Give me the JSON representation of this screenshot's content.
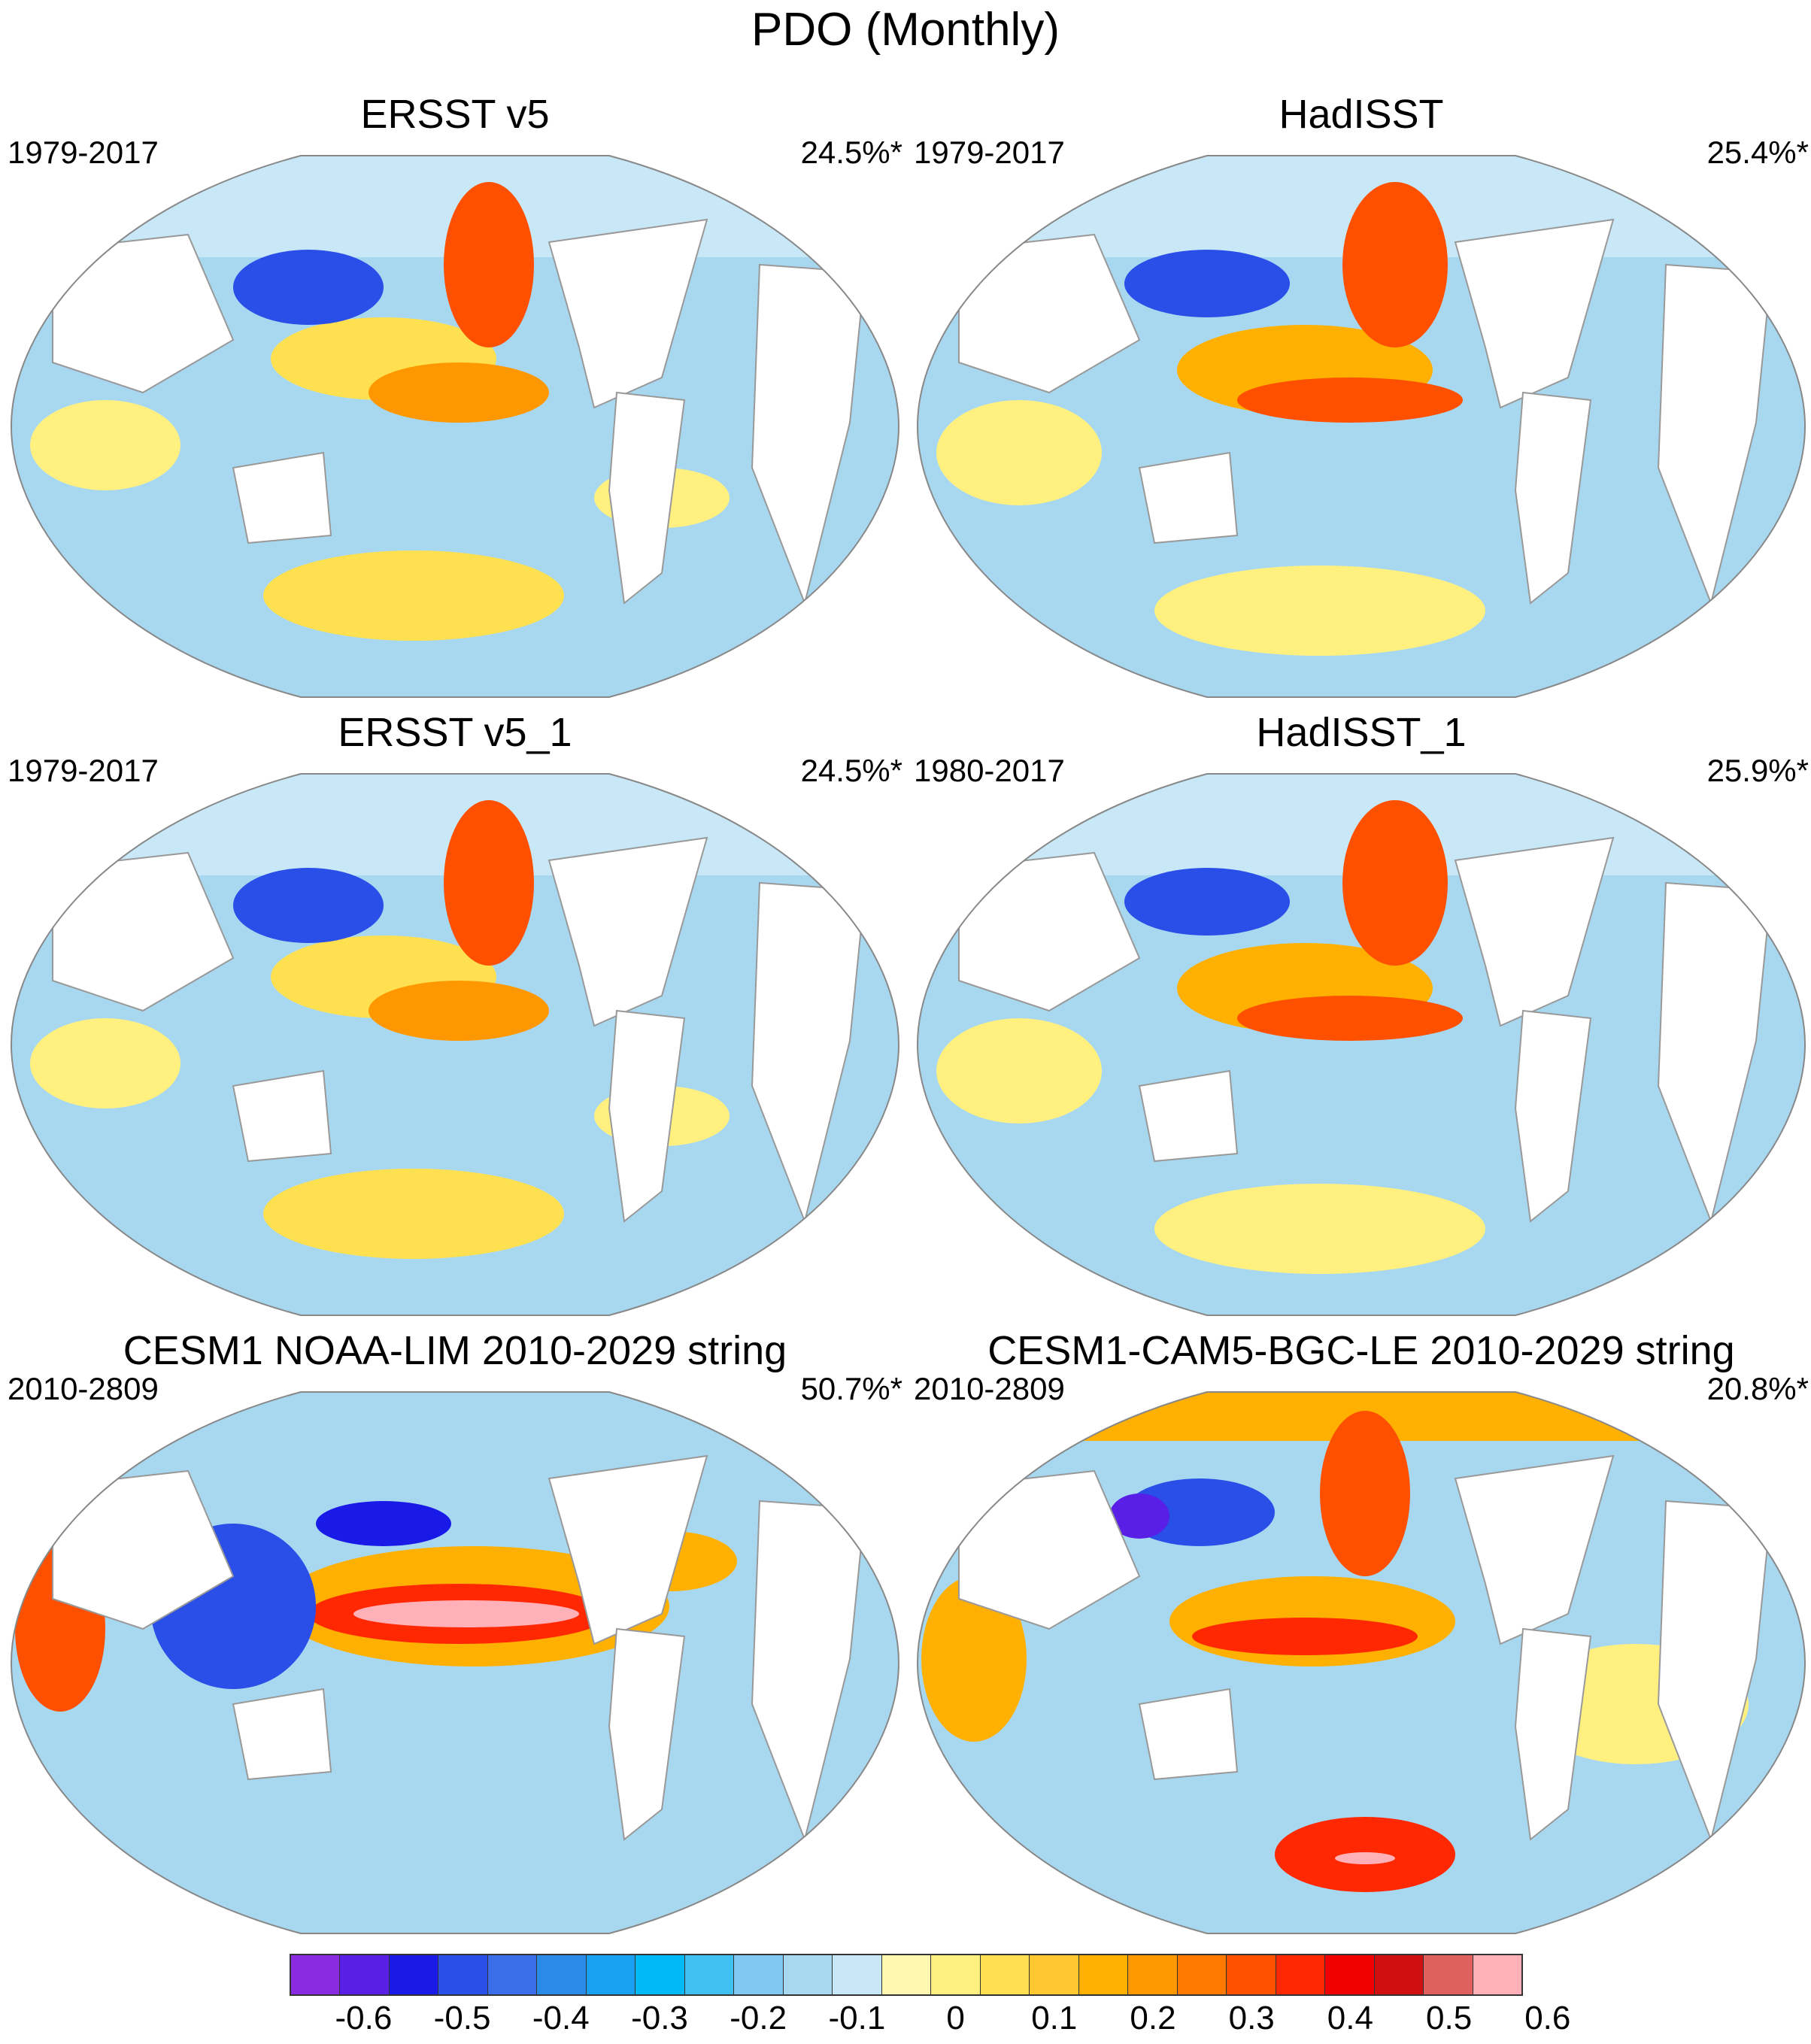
{
  "title": "PDO (Monthly)",
  "panels": [
    {
      "title": "ERSST v5",
      "period": "1979-2017",
      "variance": "24.5%*"
    },
    {
      "title": "HadISST",
      "period": "1979-2017",
      "variance": "25.4%*"
    },
    {
      "title": "ERSST v5_1",
      "period": "1979-2017",
      "variance": "24.5%*"
    },
    {
      "title": "HadISST_1",
      "period": "1980-2017",
      "variance": "25.9%*"
    },
    {
      "title": "CESM1 NOAA-LIM 2010-2029 string",
      "period": "2010-2809",
      "variance": "50.7%*"
    },
    {
      "title": "CESM1-CAM5-BGC-LE 2010-2029 string",
      "period": "2010-2809",
      "variance": "20.8%*"
    }
  ],
  "colorbar": {
    "colors": [
      "#8a2be2",
      "#5a1fe6",
      "#1a1ae8",
      "#2a4ee8",
      "#3a6ee8",
      "#2a8ae8",
      "#1aa0f0",
      "#00baf8",
      "#40c0f0",
      "#80c8f0",
      "#a8d8f0",
      "#c8e8f8",
      "#fff8b0",
      "#fff080",
      "#ffe050",
      "#ffc830",
      "#ffb000",
      "#ff9800",
      "#ff7800",
      "#ff5000",
      "#ff2800",
      "#f00000",
      "#d01010",
      "#e06060",
      "#ffb0b8"
    ],
    "labels": [
      "-0.6",
      "-0.5",
      "-0.4",
      "-0.3",
      "-0.2",
      "-0.1",
      "0",
      "0.1",
      "0.2",
      "0.3",
      "0.4",
      "0.5",
      "0.6"
    ]
  }
}
